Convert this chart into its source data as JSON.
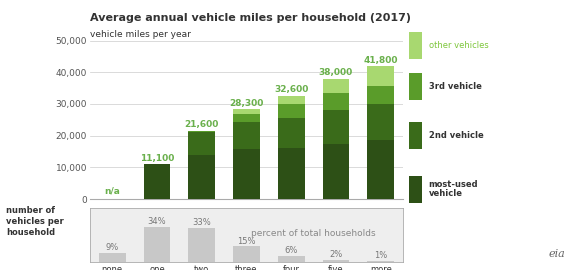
{
  "title": "Average annual vehicle miles per household (2017)",
  "subtitle": "vehicle miles per year",
  "categories": [
    "none",
    "one",
    "two",
    "three",
    "four",
    "five",
    "more\nthan five"
  ],
  "totals": [
    0,
    11100,
    21600,
    28300,
    32600,
    38000,
    41800
  ],
  "total_labels": [
    "n/a",
    "11,100",
    "21,600",
    "28,300",
    "32,600",
    "38,000",
    "41,800"
  ],
  "segments": {
    "most_used": [
      0,
      11100,
      14000,
      15800,
      16200,
      17500,
      18500
    ],
    "second": [
      0,
      0,
      7000,
      8500,
      9400,
      10500,
      11500
    ],
    "third": [
      0,
      0,
      600,
      2500,
      4500,
      5500,
      5500
    ],
    "other": [
      0,
      0,
      0,
      1500,
      2500,
      4500,
      6300
    ]
  },
  "colors": {
    "most_used": "#2d5016",
    "second": "#3a6b1a",
    "third": "#5a9c2a",
    "other": "#a8d870"
  },
  "legend_labels": [
    "other vehicles",
    "3rd vehicle",
    "2nd vehicle",
    "most-used\nvehicle"
  ],
  "legend_colors": [
    "#a8d870",
    "#5a9c2a",
    "#3a6b1a",
    "#2d5016"
  ],
  "percentages": [
    "9%",
    "34%",
    "33%",
    "15%",
    "6%",
    "2%",
    "1%"
  ],
  "pct_bar_heights": [
    0.09,
    0.34,
    0.33,
    0.15,
    0.06,
    0.02,
    0.01
  ],
  "bottom_label": "number of\nvehicles per\nhousehold",
  "pct_label": "percent of total households",
  "ylim": [
    0,
    50000
  ],
  "yticks": [
    0,
    10000,
    20000,
    30000,
    40000,
    50000
  ],
  "ytick_labels": [
    "0",
    "10,000",
    "20,000",
    "30,000",
    "40,000",
    "50,000"
  ],
  "bar_color_gray": "#c8c8c8",
  "bg_color": "#ffffff",
  "grid_color": "#cccccc",
  "title_color": "#333333",
  "value_label_color": "#6ab04c",
  "na_label_color": "#6ab04c",
  "bottom_panel_bg": "#eeeeee"
}
